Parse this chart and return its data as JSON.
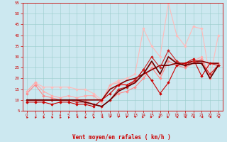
{
  "xlabel": "Vent moyen/en rafales ( km/h )",
  "xlim": [
    -0.5,
    23.5
  ],
  "ylim": [
    5,
    55
  ],
  "yticks": [
    5,
    10,
    15,
    20,
    25,
    30,
    35,
    40,
    45,
    50,
    55
  ],
  "xticks": [
    0,
    1,
    2,
    3,
    4,
    5,
    6,
    7,
    8,
    9,
    10,
    11,
    12,
    13,
    14,
    15,
    16,
    17,
    18,
    19,
    20,
    21,
    22,
    23
  ],
  "background_color": "#cce8f0",
  "grid_color": "#99cccc",
  "series": [
    {
      "x": [
        0,
        1,
        2,
        3,
        4,
        5,
        6,
        7,
        8,
        9,
        10,
        11,
        12,
        13,
        14,
        15,
        16,
        17,
        18,
        19,
        20,
        21,
        22,
        23
      ],
      "y": [
        9,
        9,
        9,
        8,
        9,
        9,
        8,
        8,
        7,
        10,
        13,
        17,
        17,
        19,
        24,
        19,
        13,
        18,
        26,
        27,
        29,
        21,
        27,
        26
      ],
      "color": "#cc0000",
      "lw": 0.8,
      "marker": "D",
      "ms": 1.8,
      "zorder": 5
    },
    {
      "x": [
        0,
        1,
        2,
        3,
        4,
        5,
        6,
        7,
        8,
        9,
        10,
        11,
        12,
        13,
        14,
        15,
        16,
        17,
        18,
        19,
        20,
        21,
        22,
        23
      ],
      "y": [
        10,
        10,
        10,
        10,
        10,
        10,
        10,
        10,
        10,
        10,
        15,
        17,
        19,
        20,
        22,
        24,
        26,
        26,
        27,
        27,
        28,
        28,
        27,
        27
      ],
      "color": "#880000",
      "lw": 1.2,
      "marker": null,
      "ms": 0,
      "zorder": 4
    },
    {
      "x": [
        0,
        1,
        2,
        3,
        4,
        5,
        6,
        7,
        8,
        9,
        10,
        11,
        12,
        13,
        14,
        15,
        16,
        17,
        18,
        19,
        20,
        21,
        22,
        23
      ],
      "y": [
        13,
        17,
        12,
        11,
        10,
        10,
        10,
        10,
        8,
        7,
        10,
        13,
        14,
        16,
        20,
        25,
        20,
        28,
        26,
        25,
        27,
        29,
        20,
        26
      ],
      "color": "#ff8888",
      "lw": 0.8,
      "marker": "D",
      "ms": 1.8,
      "zorder": 3
    },
    {
      "x": [
        0,
        1,
        2,
        3,
        4,
        5,
        6,
        7,
        8,
        9,
        10,
        11,
        12,
        13,
        14,
        15,
        16,
        17,
        18,
        19,
        20,
        21,
        22,
        23
      ],
      "y": [
        14,
        18,
        14,
        12,
        11,
        12,
        11,
        12,
        12,
        9,
        17,
        18,
        17,
        18,
        22,
        27,
        22,
        30,
        28,
        26,
        28,
        30,
        21,
        27
      ],
      "color": "#ffaaaa",
      "lw": 0.8,
      "marker": "D",
      "ms": 1.8,
      "zorder": 3
    },
    {
      "x": [
        0,
        1,
        2,
        3,
        4,
        5,
        6,
        7,
        8,
        9,
        10,
        11,
        12,
        13,
        14,
        15,
        16,
        17,
        18,
        19,
        20,
        21,
        22,
        23
      ],
      "y": [
        10,
        10,
        10,
        10,
        10,
        10,
        9,
        9,
        8,
        7,
        10,
        15,
        16,
        19,
        24,
        30,
        25,
        33,
        28,
        26,
        28,
        27,
        22,
        26
      ],
      "color": "#cc2222",
      "lw": 0.8,
      "marker": "D",
      "ms": 1.8,
      "zorder": 5
    },
    {
      "x": [
        0,
        1,
        2,
        3,
        4,
        5,
        6,
        7,
        8,
        9,
        10,
        11,
        12,
        13,
        14,
        15,
        16,
        17,
        18,
        19,
        20,
        21,
        22,
        23
      ],
      "y": [
        14,
        18,
        16,
        16,
        16,
        16,
        15,
        15,
        13,
        10,
        17,
        19,
        20,
        22,
        43,
        35,
        30,
        55,
        40,
        35,
        44,
        43,
        20,
        40
      ],
      "color": "#ffbbbb",
      "lw": 0.8,
      "marker": "D",
      "ms": 1.8,
      "zorder": 2
    },
    {
      "x": [
        0,
        1,
        2,
        3,
        4,
        5,
        6,
        7,
        8,
        9,
        10,
        11,
        12,
        13,
        14,
        15,
        16,
        17,
        18,
        19,
        20,
        21,
        22,
        23
      ],
      "y": [
        10,
        10,
        10,
        10,
        10,
        10,
        10,
        9,
        8,
        7,
        10,
        14,
        16,
        18,
        22,
        28,
        22,
        30,
        27,
        26,
        27,
        27,
        20,
        26
      ],
      "color": "#660000",
      "lw": 1.2,
      "marker": null,
      "ms": 0,
      "zorder": 6
    }
  ],
  "wind_arrows": {
    "angles": [
      225,
      225,
      210,
      225,
      210,
      225,
      270,
      225,
      225,
      270,
      315,
      315,
      335,
      355,
      90,
      90,
      90,
      90,
      270,
      270,
      270,
      270,
      270,
      270
    ],
    "color": "#cc0000"
  }
}
